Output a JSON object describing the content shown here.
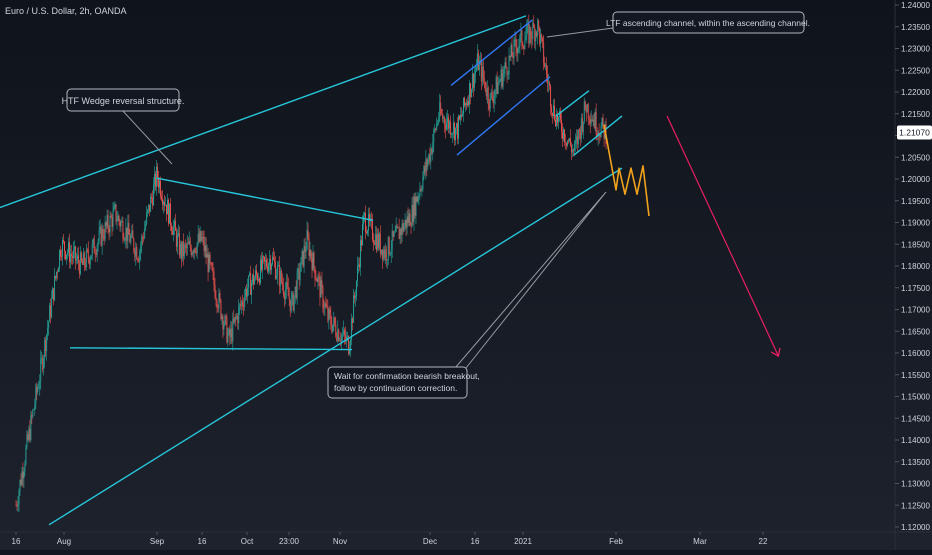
{
  "header": {
    "symbol_title": "Euro / U.S. Dollar, 2h, OANDA"
  },
  "colors": {
    "background_top": "#0f131b",
    "background_bottom": "#1e222d",
    "grid": "#232733",
    "candle_up": "#26a69a",
    "candle_down": "#ef5350",
    "trendline": "#26c6da",
    "channel": "#3179f5",
    "forecast": "#f2a21b",
    "target_arrow": "#e91e63",
    "axis_text": "#d1d4dc",
    "price_badge": "#ffffff",
    "price_badge_text": "#131722"
  },
  "annotations": {
    "htf_wedge": "HTF Wedge reversal structure.",
    "ltf_channel": "LTF ascending channel, within the ascending channel.",
    "confirm_line1": "Wait for confirmation bearish breakout,",
    "confirm_line2": "follow by continuation correction."
  },
  "chart_data": {
    "type": "candlestick",
    "instrument": "Euro / U.S. Dollar",
    "timeframe": "2h",
    "source": "OANDA",
    "y_axis": {
      "ylim": [
        1.12,
        1.24
      ],
      "ticks": [
        "1.24000",
        "1.23500",
        "1.23000",
        "1.22500",
        "1.22000",
        "1.21500",
        "1.21000",
        "1.20500",
        "1.20000",
        "1.19500",
        "1.19000",
        "1.18500",
        "1.18000",
        "1.17500",
        "1.17000",
        "1.16500",
        "1.16000",
        "1.15500",
        "1.15000",
        "1.14500",
        "1.14000",
        "1.13500",
        "1.13000",
        "1.12500",
        "1.12000"
      ],
      "current_price": "1.21070"
    },
    "x_axis": {
      "ticks": [
        "16",
        "Aug",
        "Sep",
        "16",
        "Oct",
        "23:00",
        "Nov",
        "Dec",
        "16",
        "2021",
        "Feb",
        "Mar",
        "22"
      ]
    },
    "price_path": [
      {
        "x": "Jul 16",
        "y": 1.125
      },
      {
        "x": "Jul 24",
        "y": 1.155
      },
      {
        "x": "Jul 31",
        "y": 1.185
      },
      {
        "x": "Aug 7",
        "y": 1.18
      },
      {
        "x": "Aug 18",
        "y": 1.192
      },
      {
        "x": "Aug 26",
        "y": 1.183
      },
      {
        "x": "Sep 1",
        "y": 1.201
      },
      {
        "x": "Sep 9",
        "y": 1.183
      },
      {
        "x": "Sep 16",
        "y": 1.186
      },
      {
        "x": "Sep 25",
        "y": 1.163
      },
      {
        "x": "Oct 1",
        "y": 1.175
      },
      {
        "x": "Oct 9",
        "y": 1.182
      },
      {
        "x": "Oct 16",
        "y": 1.171
      },
      {
        "x": "Oct 21",
        "y": 1.186
      },
      {
        "x": "Oct 28",
        "y": 1.168
      },
      {
        "x": "Nov 4",
        "y": 1.162
      },
      {
        "x": "Nov 9",
        "y": 1.191
      },
      {
        "x": "Nov 16",
        "y": 1.183
      },
      {
        "x": "Nov 25",
        "y": 1.192
      },
      {
        "x": "Dec 1",
        "y": 1.206
      },
      {
        "x": "Dec 4",
        "y": 1.215
      },
      {
        "x": "Dec 10",
        "y": 1.211
      },
      {
        "x": "Dec 17",
        "y": 1.227
      },
      {
        "x": "Dec 21",
        "y": 1.218
      },
      {
        "x": "Dec 30",
        "y": 1.231
      },
      {
        "x": "Jan 6",
        "y": 1.235
      },
      {
        "x": "Jan 11",
        "y": 1.216
      },
      {
        "x": "Jan 18",
        "y": 1.206
      },
      {
        "x": "Jan 22",
        "y": 1.217
      },
      {
        "x": "Jan 26",
        "y": 1.212
      },
      {
        "x": "Jan 29",
        "y": 1.2107
      }
    ],
    "drawings": [
      {
        "name": "htf-upper-wedge-line",
        "points": [
          [
            "Jun 25",
            1.1895
          ],
          [
            "Jan 2",
            1.2375
          ]
        ]
      },
      {
        "name": "htf-lower-wedge-line",
        "points": [
          [
            "Jul 27",
            1.1205
          ],
          [
            "Feb 3",
            1.2025
          ]
        ]
      },
      {
        "name": "inner-wedge-top-line",
        "points": [
          [
            "Sep 1",
            1.2002
          ],
          [
            "Nov 12",
            1.1905
          ]
        ]
      },
      {
        "name": "horizontal-support-line",
        "points": [
          [
            "Aug 3",
            1.1612
          ],
          [
            "Nov 5",
            1.1608
          ]
        ]
      },
      {
        "name": "ltf-channel-upper",
        "points": [
          [
            "Dec 8",
            1.2215
          ],
          [
            "Jan 4",
            1.2365
          ]
        ]
      },
      {
        "name": "ltf-channel-lower",
        "points": [
          [
            "Dec 10",
            1.2055
          ],
          [
            "Jan 10",
            1.2235
          ]
        ]
      },
      {
        "name": "small-channel-upper",
        "points": [
          [
            "Jan 12",
            1.2145
          ],
          [
            "Jan 23",
            1.2203
          ]
        ]
      },
      {
        "name": "small-channel-lower",
        "points": [
          [
            "Jan 18",
            1.2055
          ],
          [
            "Feb 3",
            1.2145
          ]
        ]
      }
    ],
    "forecast_path": [
      {
        "x": "Jan 28",
        "y": 1.2125
      },
      {
        "x": "Feb 1",
        "y": 1.1975
      },
      {
        "x": "Feb 2",
        "y": 1.2025
      },
      {
        "x": "Feb 4",
        "y": 1.1965
      },
      {
        "x": "Feb 6",
        "y": 1.2025
      },
      {
        "x": "Feb 8",
        "y": 1.1965
      },
      {
        "x": "Feb 10",
        "y": 1.203
      },
      {
        "x": "Feb 12",
        "y": 1.1915
      }
    ],
    "target_arrow": {
      "from": {
        "x": "Feb 18",
        "y": 1.2145
      },
      "to": {
        "x": "Mar 27",
        "y": 1.1595
      }
    },
    "grid": false
  }
}
